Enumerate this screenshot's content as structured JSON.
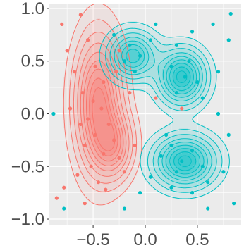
{
  "chart_data": {
    "type": "scatter",
    "title": "",
    "xlabel": "",
    "ylabel": "",
    "xlim": [
      -0.92,
      0.92
    ],
    "ylim": [
      -1.06,
      1.04
    ],
    "x_ticks": [
      -0.5,
      0.0,
      0.5
    ],
    "x_tick_labels": [
      "−0.5",
      "0.0",
      "0.5"
    ],
    "y_ticks": [
      -1.0,
      -0.5,
      0.0,
      0.5,
      1.0
    ],
    "y_tick_labels": [
      "−1.0",
      "−0.5",
      "0.0",
      "0.5",
      "1.0"
    ],
    "grid": true,
    "legend": "none",
    "overlay": "2D density contours with filled density layers per group",
    "colors": {
      "panel_bg": "#ebebeb",
      "grid": "#ffffff",
      "series_a": "#f8766d",
      "series_b": "#00bfc4"
    },
    "series": [
      {
        "color_key": "series_a",
        "density_modes": [
          {
            "x": -0.45,
            "y": 0.1,
            "sx": 0.14,
            "sy": 0.4,
            "w": 1.0
          },
          {
            "x": -0.3,
            "y": -0.3,
            "sx": 0.12,
            "sy": 0.2,
            "w": 0.6
          }
        ],
        "points": [
          [
            -0.8,
            0.85
          ],
          [
            -0.62,
            0.94
          ],
          [
            -0.75,
            0.6
          ],
          [
            -0.55,
            0.7
          ],
          [
            -0.48,
            0.45
          ],
          [
            -0.68,
            0.4
          ],
          [
            -0.4,
            0.3
          ],
          [
            -0.6,
            0.2
          ],
          [
            -0.5,
            0.12
          ],
          [
            -0.42,
            0.05
          ],
          [
            -0.55,
            -0.05
          ],
          [
            -0.35,
            -0.1
          ],
          [
            -0.48,
            -0.2
          ],
          [
            -0.3,
            -0.25
          ],
          [
            -0.58,
            -0.3
          ],
          [
            -0.4,
            -0.38
          ],
          [
            -0.25,
            -0.42
          ],
          [
            -0.52,
            -0.5
          ],
          [
            -0.65,
            -0.58
          ],
          [
            -0.78,
            -0.7
          ],
          [
            -0.85,
            -0.8
          ],
          [
            -0.45,
            -0.65
          ],
          [
            -0.2,
            -0.55
          ],
          [
            -0.15,
            0.2
          ],
          [
            -0.28,
            0.4
          ],
          [
            -0.62,
            -0.1
          ],
          [
            -0.72,
            0.05
          ],
          [
            -0.38,
            -0.72
          ],
          [
            -0.58,
            -0.85
          ],
          [
            -0.25,
            0.6
          ],
          [
            -0.1,
            -0.3
          ],
          [
            0.1,
            0.15
          ],
          [
            0.35,
            0.05
          ]
        ]
      },
      {
        "color_key": "series_b",
        "density_modes": [
          {
            "x": 0.35,
            "y": 0.35,
            "sx": 0.14,
            "sy": 0.16,
            "w": 1.0
          },
          {
            "x": 0.38,
            "y": -0.45,
            "sx": 0.18,
            "sy": 0.15,
            "w": 1.0
          },
          {
            "x": -0.12,
            "y": 0.55,
            "sx": 0.14,
            "sy": 0.14,
            "w": 0.8
          }
        ],
        "points": [
          [
            0.82,
            0.95
          ],
          [
            0.65,
            0.85
          ],
          [
            0.45,
            0.78
          ],
          [
            0.3,
            0.65
          ],
          [
            0.42,
            0.5
          ],
          [
            0.25,
            0.45
          ],
          [
            0.38,
            0.35
          ],
          [
            0.5,
            0.3
          ],
          [
            0.3,
            0.2
          ],
          [
            0.55,
            0.15
          ],
          [
            0.7,
            0.4
          ],
          [
            0.8,
            0.7
          ],
          [
            0.05,
            0.7
          ],
          [
            -0.15,
            0.65
          ],
          [
            -0.05,
            0.55
          ],
          [
            -0.2,
            0.5
          ],
          [
            -0.1,
            0.4
          ],
          [
            0.1,
            0.85
          ],
          [
            -0.3,
            0.75
          ],
          [
            0.25,
            -0.3
          ],
          [
            0.45,
            -0.35
          ],
          [
            0.35,
            -0.45
          ],
          [
            0.55,
            -0.5
          ],
          [
            0.3,
            -0.55
          ],
          [
            0.15,
            -0.4
          ],
          [
            0.6,
            -0.65
          ],
          [
            0.45,
            -0.75
          ],
          [
            0.25,
            -0.7
          ],
          [
            0.75,
            -0.55
          ],
          [
            0.85,
            -0.85
          ],
          [
            0.6,
            -0.9
          ],
          [
            0.05,
            -0.6
          ],
          [
            -0.05,
            -0.75
          ],
          [
            0.2,
            -0.2
          ],
          [
            -0.88,
            0.0
          ],
          [
            -0.78,
            -0.9
          ],
          [
            0.7,
            0.0
          ],
          [
            0.8,
            -0.2
          ],
          [
            -0.2,
            -0.9
          ]
        ]
      }
    ]
  }
}
